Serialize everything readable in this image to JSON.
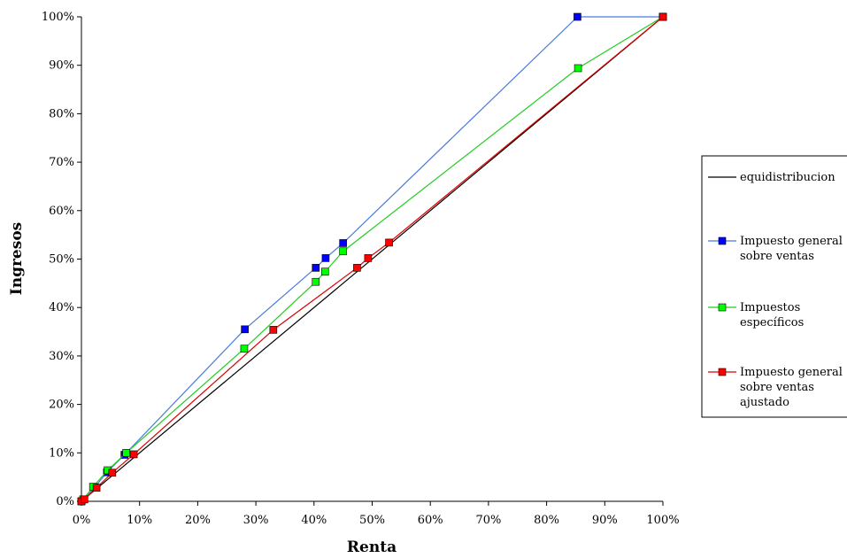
{
  "chart_data": {
    "type": "line",
    "title": "",
    "xlabel": "Renta",
    "ylabel": "Ingresos",
    "xlim": [
      0,
      100
    ],
    "ylim": [
      0,
      100
    ],
    "x_ticks": [
      "0%",
      "10%",
      "20%",
      "30%",
      "40%",
      "50%",
      "60%",
      "70%",
      "80%",
      "90%",
      "100%"
    ],
    "y_ticks": [
      "0%",
      "10%",
      "20%",
      "30%",
      "40%",
      "50%",
      "60%",
      "70%",
      "80%",
      "90%",
      "100%"
    ],
    "grid": false,
    "legend_position": "right",
    "series": [
      {
        "name": "equidistribucion",
        "color": "#000000",
        "marker": "none",
        "points": [
          [
            0,
            0
          ],
          [
            100,
            100
          ]
        ]
      },
      {
        "name": "Impuesto general sobre ventas",
        "legend_lines": [
          "Impuesto general",
          "sobre ventas"
        ],
        "color": "#0000ff",
        "line_color": "#4a7bd8",
        "marker": "square",
        "points": [
          [
            0,
            0
          ],
          [
            0.4,
            0.4
          ],
          [
            2.3,
            2.9
          ],
          [
            4.4,
            6.0
          ],
          [
            7.4,
            9.6
          ],
          [
            28.1,
            35.5
          ],
          [
            40.3,
            48.2
          ],
          [
            42.0,
            50.2
          ],
          [
            45.0,
            53.3
          ],
          [
            85.3,
            100
          ],
          [
            100,
            100
          ]
        ]
      },
      {
        "name": "Impuestos específicos",
        "legend_lines": [
          "Impuestos",
          "específicos"
        ],
        "color": "#00ff00",
        "line_color": "#22cc22",
        "marker": "square",
        "points": [
          [
            0,
            0
          ],
          [
            0.3,
            0.4
          ],
          [
            2.0,
            3.0
          ],
          [
            4.5,
            6.4
          ],
          [
            7.7,
            10.0
          ],
          [
            28.0,
            31.5
          ],
          [
            40.3,
            45.3
          ],
          [
            41.9,
            47.4
          ],
          [
            45.0,
            51.6
          ],
          [
            85.4,
            89.4
          ],
          [
            100,
            100
          ]
        ]
      },
      {
        "name": "Impuesto general sobre ventas ajustado",
        "legend_lines": [
          "Impuesto general",
          "sobre ventas",
          "ajustado"
        ],
        "color": "#ff0000",
        "line_color": "#dd0000",
        "marker": "square",
        "points": [
          [
            0,
            0
          ],
          [
            0.5,
            0.4
          ],
          [
            2.6,
            2.8
          ],
          [
            5.3,
            5.9
          ],
          [
            9.0,
            9.7
          ],
          [
            33.0,
            35.4
          ],
          [
            47.4,
            48.2
          ],
          [
            49.3,
            50.2
          ],
          [
            52.9,
            53.4
          ],
          [
            100,
            100
          ]
        ]
      }
    ]
  }
}
